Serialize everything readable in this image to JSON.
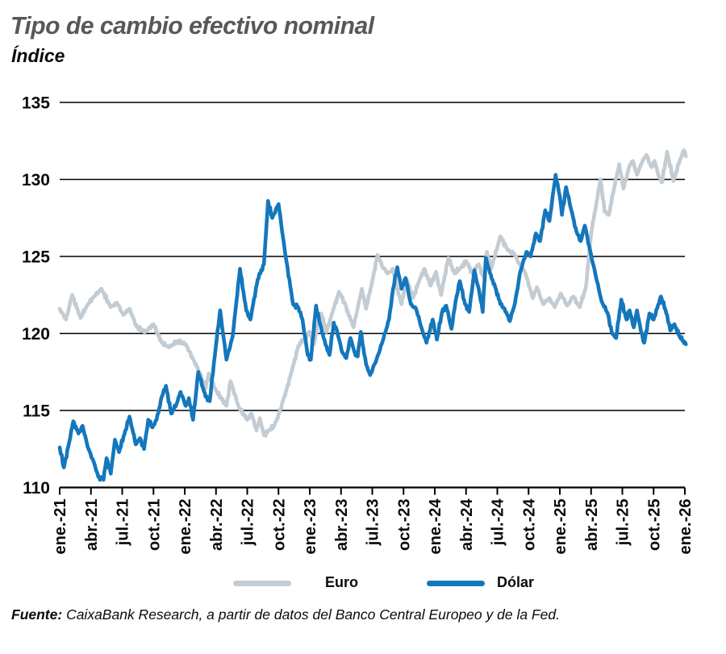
{
  "header": {
    "title": "Tipo de cambio efectivo nominal",
    "subtitle": "Índice"
  },
  "chart_data": {
    "type": "line",
    "title": "Tipo de cambio efectivo nominal",
    "ylabel": "Índice",
    "ylim": [
      110,
      135
    ],
    "y_ticks": [
      110,
      115,
      120,
      125,
      130,
      135
    ],
    "grid": "horizontal",
    "legend_position": "bottom",
    "x_unit": "months since ene-2021, quarterly ticks",
    "x_months_range": [
      0,
      60
    ],
    "x_tick_labels": [
      "ene.-21",
      "abr.-21",
      "jul.-21",
      "oct.-21",
      "ene.-22",
      "abr.-22",
      "jul.-22",
      "oct.-22",
      "ene.-23",
      "abr.-23",
      "jul.-23",
      "oct.-23",
      "ene.-24",
      "abr.-24",
      "jul.-24",
      "oct.-24",
      "ene.-25",
      "abr.-25",
      "jul.-25",
      "oct.-25",
      "ene.-26"
    ],
    "axis_color": "#000000",
    "series": [
      {
        "name": "Euro",
        "color": "#c3ccd3",
        "points": [
          [
            0,
            121.6
          ],
          [
            0.6,
            120.9
          ],
          [
            1.2,
            122.5
          ],
          [
            2.0,
            121.0
          ],
          [
            2.6,
            121.8
          ],
          [
            3.3,
            122.4
          ],
          [
            4.0,
            122.9
          ],
          [
            4.9,
            121.7
          ],
          [
            5.5,
            122.0
          ],
          [
            6.1,
            121.2
          ],
          [
            6.7,
            121.6
          ],
          [
            7.4,
            120.4
          ],
          [
            8.2,
            120.1
          ],
          [
            9.0,
            120.6
          ],
          [
            9.8,
            119.4
          ],
          [
            10.5,
            119.1
          ],
          [
            11.3,
            119.5
          ],
          [
            12.1,
            119.3
          ],
          [
            12.9,
            118.2
          ],
          [
            13.4,
            117.5
          ],
          [
            14.0,
            116.4
          ],
          [
            14.3,
            117.4
          ],
          [
            15.0,
            116.3
          ],
          [
            16.0,
            115.3
          ],
          [
            16.4,
            116.9
          ],
          [
            17.2,
            115.2
          ],
          [
            18.0,
            114.4
          ],
          [
            18.4,
            114.8
          ],
          [
            18.9,
            113.7
          ],
          [
            19.2,
            114.5
          ],
          [
            19.6,
            113.4
          ],
          [
            20.1,
            113.7
          ],
          [
            20.6,
            114.0
          ],
          [
            21.1,
            114.9
          ],
          [
            21.7,
            116.2
          ],
          [
            22.3,
            117.6
          ],
          [
            22.9,
            119.2
          ],
          [
            23.4,
            119.6
          ],
          [
            24.0,
            120.1
          ],
          [
            24.4,
            119.3
          ],
          [
            24.9,
            121.0
          ],
          [
            25.1,
            121.3
          ],
          [
            25.6,
            120.1
          ],
          [
            26.2,
            121.4
          ],
          [
            26.8,
            122.7
          ],
          [
            27.4,
            121.9
          ],
          [
            27.9,
            120.9
          ],
          [
            28.2,
            120.4
          ],
          [
            28.7,
            122.0
          ],
          [
            29.0,
            122.9
          ],
          [
            29.4,
            121.6
          ],
          [
            30.0,
            123.4
          ],
          [
            30.5,
            125.1
          ],
          [
            31.0,
            124.3
          ],
          [
            31.5,
            123.9
          ],
          [
            32.0,
            124.2
          ],
          [
            32.4,
            122.9
          ],
          [
            32.8,
            121.9
          ],
          [
            33.3,
            123.5
          ],
          [
            33.9,
            122.3
          ],
          [
            34.5,
            123.4
          ],
          [
            35.0,
            124.2
          ],
          [
            35.6,
            123.1
          ],
          [
            36.1,
            124.0
          ],
          [
            36.6,
            122.5
          ],
          [
            37.3,
            124.9
          ],
          [
            37.9,
            123.9
          ],
          [
            38.5,
            124.3
          ],
          [
            39.0,
            124.7
          ],
          [
            39.6,
            123.9
          ],
          [
            40.2,
            124.5
          ],
          [
            40.7,
            123.6
          ],
          [
            41.0,
            125.3
          ],
          [
            41.4,
            124.2
          ],
          [
            42.3,
            126.3
          ],
          [
            43.0,
            125.4
          ],
          [
            43.6,
            125.2
          ],
          [
            44.2,
            124.4
          ],
          [
            44.7,
            123.9
          ],
          [
            45.4,
            122.3
          ],
          [
            45.8,
            123.0
          ],
          [
            46.4,
            121.9
          ],
          [
            47.0,
            122.3
          ],
          [
            47.5,
            121.7
          ],
          [
            48.1,
            122.6
          ],
          [
            48.7,
            121.8
          ],
          [
            49.3,
            122.4
          ],
          [
            49.9,
            121.7
          ],
          [
            50.5,
            123.0
          ],
          [
            51.0,
            126.5
          ],
          [
            51.5,
            128.4
          ],
          [
            51.9,
            130.0
          ],
          [
            52.3,
            127.9
          ],
          [
            52.7,
            127.7
          ],
          [
            53.2,
            129.4
          ],
          [
            53.7,
            131.0
          ],
          [
            54.1,
            129.4
          ],
          [
            54.7,
            130.9
          ],
          [
            55.0,
            131.2
          ],
          [
            55.4,
            130.3
          ],
          [
            55.8,
            131.0
          ],
          [
            56.3,
            131.6
          ],
          [
            56.8,
            130.8
          ],
          [
            57.1,
            131.2
          ],
          [
            57.5,
            130.2
          ],
          [
            57.8,
            129.8
          ],
          [
            58.3,
            131.8
          ],
          [
            58.9,
            129.9
          ],
          [
            59.5,
            131.2
          ],
          [
            59.9,
            131.9
          ],
          [
            60.1,
            131.5
          ]
        ]
      },
      {
        "name": "Dólar",
        "color": "#1477bc",
        "points": [
          [
            0,
            112.6
          ],
          [
            0.4,
            111.3
          ],
          [
            0.9,
            112.9
          ],
          [
            1.3,
            114.3
          ],
          [
            1.8,
            113.5
          ],
          [
            2.2,
            114.0
          ],
          [
            2.7,
            112.6
          ],
          [
            3.3,
            111.6
          ],
          [
            3.7,
            110.7
          ],
          [
            4.2,
            110.5
          ],
          [
            4.5,
            111.9
          ],
          [
            4.9,
            110.9
          ],
          [
            5.3,
            113.1
          ],
          [
            5.7,
            112.3
          ],
          [
            6.3,
            113.7
          ],
          [
            6.7,
            114.6
          ],
          [
            7.3,
            112.8
          ],
          [
            7.7,
            113.2
          ],
          [
            8.1,
            112.5
          ],
          [
            8.5,
            114.4
          ],
          [
            8.9,
            113.9
          ],
          [
            9.3,
            114.4
          ],
          [
            9.8,
            115.9
          ],
          [
            10.2,
            116.6
          ],
          [
            10.7,
            114.8
          ],
          [
            11.2,
            115.4
          ],
          [
            11.6,
            116.2
          ],
          [
            12.1,
            115.3
          ],
          [
            12.4,
            115.8
          ],
          [
            12.8,
            114.4
          ],
          [
            13.3,
            117.5
          ],
          [
            14.0,
            115.9
          ],
          [
            14.4,
            115.6
          ],
          [
            14.8,
            118.1
          ],
          [
            15.4,
            121.5
          ],
          [
            16.0,
            118.3
          ],
          [
            16.6,
            119.8
          ],
          [
            17.3,
            124.2
          ],
          [
            17.9,
            121.5
          ],
          [
            18.3,
            120.9
          ],
          [
            19.0,
            123.5
          ],
          [
            19.6,
            124.5
          ],
          [
            20.0,
            128.6
          ],
          [
            20.4,
            127.5
          ],
          [
            21.0,
            128.4
          ],
          [
            21.6,
            125.4
          ],
          [
            22.4,
            121.9
          ],
          [
            22.9,
            121.7
          ],
          [
            23.3,
            120.9
          ],
          [
            23.8,
            118.6
          ],
          [
            24.1,
            118.3
          ],
          [
            24.6,
            121.8
          ],
          [
            25.0,
            120.6
          ],
          [
            25.5,
            119.3
          ],
          [
            25.9,
            118.6
          ],
          [
            26.3,
            120.7
          ],
          [
            26.6,
            120.2
          ],
          [
            27.1,
            118.8
          ],
          [
            27.5,
            118.4
          ],
          [
            27.9,
            119.7
          ],
          [
            28.3,
            118.8
          ],
          [
            28.6,
            118.5
          ],
          [
            28.9,
            120.1
          ],
          [
            29.4,
            118.0
          ],
          [
            29.8,
            117.3
          ],
          [
            30.4,
            118.3
          ],
          [
            31.0,
            119.5
          ],
          [
            31.6,
            120.9
          ],
          [
            32.0,
            122.9
          ],
          [
            32.4,
            124.3
          ],
          [
            32.8,
            122.9
          ],
          [
            33.2,
            123.6
          ],
          [
            33.7,
            121.9
          ],
          [
            34.2,
            121.6
          ],
          [
            34.8,
            120.2
          ],
          [
            35.2,
            119.4
          ],
          [
            35.8,
            120.9
          ],
          [
            36.2,
            119.6
          ],
          [
            36.7,
            121.4
          ],
          [
            37.1,
            121.8
          ],
          [
            37.6,
            120.3
          ],
          [
            38.0,
            122.1
          ],
          [
            38.4,
            123.4
          ],
          [
            38.9,
            121.9
          ],
          [
            39.3,
            121.4
          ],
          [
            39.8,
            124.1
          ],
          [
            40.3,
            122.6
          ],
          [
            40.6,
            121.4
          ],
          [
            40.9,
            124.9
          ],
          [
            41.3,
            123.9
          ],
          [
            41.8,
            123.0
          ],
          [
            42.3,
            121.9
          ],
          [
            42.7,
            121.6
          ],
          [
            43.2,
            120.8
          ],
          [
            43.7,
            122.0
          ],
          [
            44.2,
            124.0
          ],
          [
            44.8,
            125.3
          ],
          [
            45.2,
            125.0
          ],
          [
            45.7,
            126.5
          ],
          [
            46.1,
            126.0
          ],
          [
            46.6,
            128.0
          ],
          [
            47.0,
            127.3
          ],
          [
            47.6,
            130.3
          ],
          [
            48.0,
            128.9
          ],
          [
            48.2,
            127.7
          ],
          [
            48.6,
            129.5
          ],
          [
            49.1,
            128.0
          ],
          [
            49.6,
            126.6
          ],
          [
            50.0,
            126.0
          ],
          [
            50.4,
            127.0
          ],
          [
            50.9,
            125.4
          ],
          [
            51.4,
            123.9
          ],
          [
            52.0,
            122.1
          ],
          [
            52.6,
            121.3
          ],
          [
            53.0,
            120.0
          ],
          [
            53.4,
            119.7
          ],
          [
            53.9,
            122.2
          ],
          [
            54.4,
            120.9
          ],
          [
            54.7,
            121.5
          ],
          [
            55.1,
            120.4
          ],
          [
            55.4,
            121.5
          ],
          [
            55.8,
            120.1
          ],
          [
            56.1,
            119.4
          ],
          [
            56.6,
            121.3
          ],
          [
            57.0,
            120.9
          ],
          [
            57.7,
            122.4
          ],
          [
            58.3,
            121.2
          ],
          [
            58.6,
            120.2
          ],
          [
            59.0,
            120.6
          ],
          [
            59.5,
            119.8
          ],
          [
            60.1,
            119.3
          ]
        ]
      }
    ]
  },
  "legend": {
    "items": [
      {
        "label": "Euro",
        "color": "#c3ccd3"
      },
      {
        "label": "Dólar",
        "color": "#1477bc"
      }
    ]
  },
  "footer": {
    "source_label": "Fuente:",
    "source_text": " CaixaBank Research, a partir de datos del Banco Central Europeo y de la Fed."
  }
}
